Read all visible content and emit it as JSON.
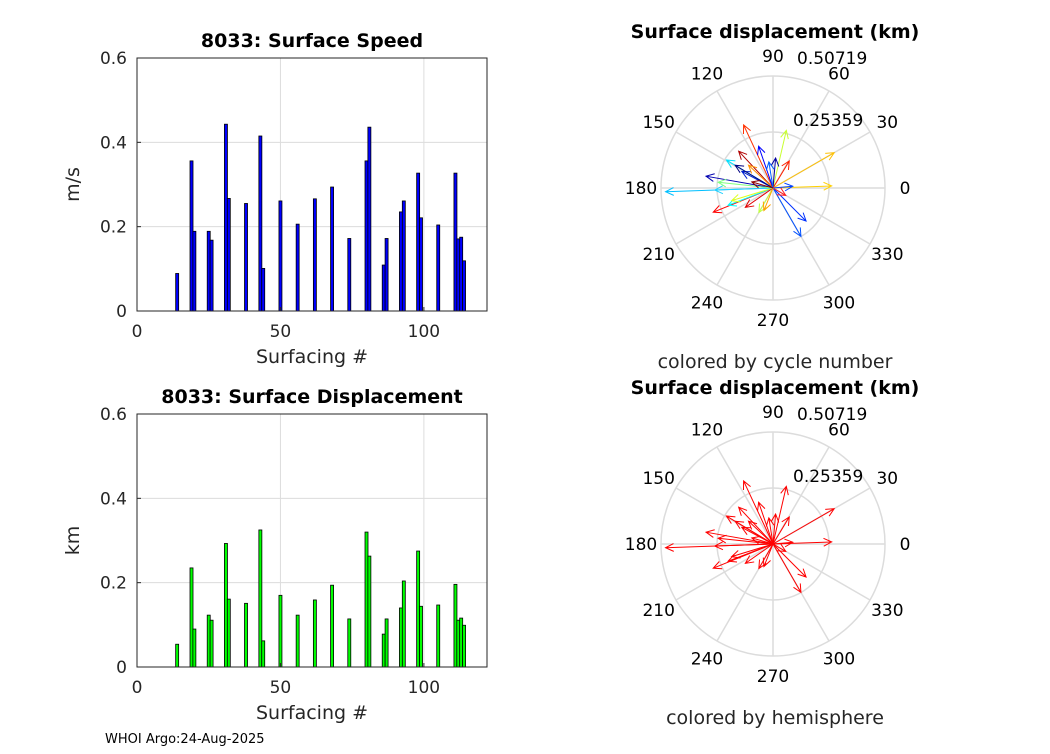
{
  "footer": "WHOI Argo:24-Aug-2025",
  "chart_data": [
    {
      "type": "bar",
      "title": "8033: Surface Speed",
      "xlabel": "Surfacing #",
      "ylabel": "m/s",
      "xlim": [
        0,
        122
      ],
      "ylim": [
        0,
        0.6
      ],
      "xticks": [
        "0",
        "50",
        "100"
      ],
      "yticks": [
        "0",
        "0.2",
        "0.4",
        "0.6"
      ],
      "grid": true,
      "bar_color": "#0000ff",
      "x": [
        14,
        19,
        20,
        25,
        26,
        31,
        32,
        38,
        43,
        44,
        50,
        56,
        62,
        68,
        74,
        80,
        81,
        86,
        87,
        92,
        93,
        98,
        99,
        105,
        111,
        112,
        113,
        114
      ],
      "values": [
        0.089,
        0.356,
        0.189,
        0.189,
        0.168,
        0.443,
        0.267,
        0.255,
        0.415,
        0.101,
        0.261,
        0.206,
        0.266,
        0.294,
        0.172,
        0.356,
        0.436,
        0.109,
        0.172,
        0.235,
        0.261,
        0.327,
        0.221,
        0.204,
        0.327,
        0.171,
        0.175,
        0.119
      ]
    },
    {
      "type": "polar-vectors",
      "title": "Surface displacement (km)",
      "subtitle": "colored by cycle number",
      "rmax": 0.50719,
      "rticks": [
        "0.25359",
        "0.50719"
      ],
      "theta_ticks": [
        "0",
        "30",
        "60",
        "90",
        "120",
        "150",
        "180",
        "210",
        "240",
        "270",
        "300",
        "330"
      ],
      "vectors": [
        {
          "angle": 115,
          "r": 0.315,
          "color": "#ff3000"
        },
        {
          "angle": 77,
          "r": 0.268,
          "color": "#c8ff30"
        },
        {
          "angle": 30,
          "r": 0.32,
          "color": "#ffc000"
        },
        {
          "angle": 2,
          "r": 0.266,
          "color": "#ffd000"
        },
        {
          "angle": 182,
          "r": 0.487,
          "color": "#00bfff"
        },
        {
          "angle": 315,
          "r": 0.212,
          "color": "#0030ff"
        },
        {
          "angle": 300,
          "r": 0.253,
          "color": "#0050ff"
        },
        {
          "angle": 202,
          "r": 0.292,
          "color": "#ff0000"
        },
        {
          "angle": 170,
          "r": 0.308,
          "color": "#0000b0"
        },
        {
          "angle": 149,
          "r": 0.246,
          "color": "#00e0ff"
        },
        {
          "angle": 133,
          "r": 0.228,
          "color": "#b00000"
        },
        {
          "angle": 109,
          "r": 0.2,
          "color": "#0000ff"
        },
        {
          "angle": 85,
          "r": 0.136,
          "color": "#0000a0"
        },
        {
          "angle": 59,
          "r": 0.143,
          "color": "#ff2000"
        },
        {
          "angle": 5,
          "r": 0.09,
          "color": "#0040ff"
        },
        {
          "angle": 240,
          "r": 0.128,
          "color": "#c0ff40"
        },
        {
          "angle": 201,
          "r": 0.218,
          "color": "#00ffff"
        },
        {
          "angle": 215,
          "r": 0.153,
          "color": "#e00000"
        },
        {
          "angle": 197,
          "r": 0.196,
          "color": "#e0ff20"
        },
        {
          "angle": 182,
          "r": 0.264,
          "color": "#20d0ff"
        },
        {
          "angle": 174,
          "r": 0.25,
          "color": "#80ff80"
        },
        {
          "angle": 152,
          "r": 0.16,
          "color": "#0020d0"
        },
        {
          "angle": 137,
          "r": 0.152,
          "color": "#ff9000"
        },
        {
          "angle": 330,
          "r": 0.067,
          "color": "#ff2020"
        },
        {
          "angle": 248,
          "r": 0.11,
          "color": "#ffa000"
        },
        {
          "angle": 149,
          "r": 0.2,
          "color": "#000080"
        },
        {
          "angle": 99,
          "r": 0.12,
          "color": "#0060ff"
        },
        {
          "angle": 164,
          "r": 0.1,
          "color": "#900000"
        }
      ]
    },
    {
      "type": "bar",
      "title": "8033: Surface Displacement",
      "xlabel": "Surfacing #",
      "ylabel": "km",
      "xlim": [
        0,
        122
      ],
      "ylim": [
        0,
        0.6
      ],
      "xticks": [
        "0",
        "50",
        "100"
      ],
      "yticks": [
        "0",
        "0.2",
        "0.4",
        "0.6"
      ],
      "grid": true,
      "bar_color": "#00ff00",
      "x": [
        14,
        19,
        20,
        25,
        26,
        31,
        32,
        38,
        43,
        44,
        50,
        56,
        62,
        68,
        74,
        80,
        81,
        86,
        87,
        92,
        93,
        98,
        99,
        105,
        111,
        112,
        113,
        114
      ],
      "values": [
        0.054,
        0.235,
        0.09,
        0.123,
        0.111,
        0.293,
        0.161,
        0.151,
        0.325,
        0.062,
        0.17,
        0.123,
        0.159,
        0.194,
        0.114,
        0.32,
        0.263,
        0.078,
        0.114,
        0.14,
        0.204,
        0.275,
        0.144,
        0.147,
        0.196,
        0.111,
        0.116,
        0.099
      ]
    },
    {
      "type": "polar-vectors",
      "title": "Surface displacement (km)",
      "subtitle": "colored by hemisphere",
      "rmax": 0.50719,
      "rticks": [
        "0.25359",
        "0.50719"
      ],
      "theta_ticks": [
        "0",
        "30",
        "60",
        "90",
        "120",
        "150",
        "180",
        "210",
        "240",
        "270",
        "300",
        "330"
      ],
      "vector_color": "#ff0000"
    }
  ]
}
